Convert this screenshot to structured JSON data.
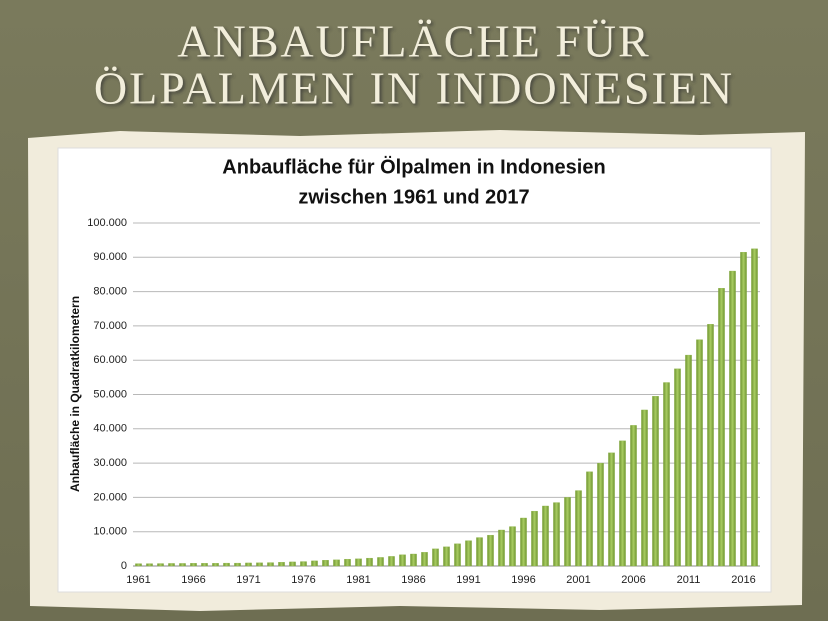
{
  "slide": {
    "title_lines": [
      "ANBAUFLÄCHE FÜR",
      "ÖLPALMEN IN INDONESIEN"
    ]
  },
  "chart_data": {
    "type": "bar",
    "title": "Anbaufläche für Ölpalmen in Indonesien",
    "subtitle": "zwischen 1961 und 2017",
    "y_label": "Anbaufläche in Quadratkilometern",
    "categories": [
      "1961",
      null,
      null,
      null,
      null,
      "1966",
      null,
      null,
      null,
      null,
      "1971",
      null,
      null,
      null,
      null,
      "1976",
      null,
      null,
      null,
      null,
      "1981",
      null,
      null,
      null,
      null,
      "1986",
      null,
      null,
      null,
      null,
      "1991",
      null,
      null,
      null,
      null,
      "1996",
      null,
      null,
      null,
      null,
      "2001",
      null,
      null,
      null,
      null,
      "2006",
      null,
      null,
      null,
      null,
      "2011",
      null,
      null,
      null,
      null,
      "2016",
      null
    ],
    "values": [
      700,
      700,
      720,
      750,
      750,
      800,
      800,
      800,
      850,
      850,
      900,
      950,
      1000,
      1100,
      1200,
      1300,
      1500,
      1700,
      1800,
      2000,
      2100,
      2300,
      2500,
      2800,
      3300,
      3500,
      4000,
      5000,
      5600,
      6500,
      7400,
      8300,
      9000,
      10500,
      11500,
      14000,
      16000,
      17500,
      18500,
      20000,
      22000,
      27500,
      30000,
      33000,
      36500,
      41000,
      45500,
      49500,
      53500,
      57500,
      61500,
      66000,
      70500,
      81000,
      86000,
      91500,
      92500
    ],
    "color": "#8db346",
    "ylim": [
      0,
      100000
    ],
    "yticks": [
      0,
      {
        "value": 10000,
        "label": "10.000"
      },
      {
        "value": 20000,
        "label": "20.000"
      },
      {
        "value": 30000,
        "label": "30.000"
      },
      {
        "value": 40000,
        "label": "40.000"
      },
      {
        "value": 50000,
        "label": "50.000"
      },
      {
        "value": 60000,
        "label": "60.000"
      },
      {
        "value": 70000,
        "label": "70.000"
      },
      {
        "value": 80000,
        "label": "80.000"
      },
      {
        "value": 90000,
        "label": "90.000"
      },
      {
        "value": 100000,
        "label": "100.000"
      }
    ],
    "grid": true
  }
}
